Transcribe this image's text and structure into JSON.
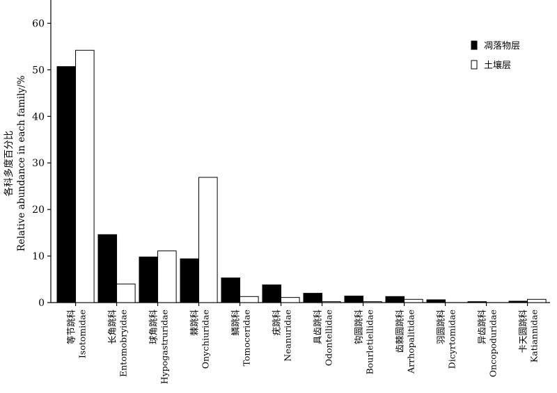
{
  "chart_data": {
    "type": "bar",
    "ylabel_zh": "各科多度百分比",
    "ylabel_en": "Relative abundance in each family/%",
    "ylim": [
      0,
      65
    ],
    "yticks": [
      0,
      10,
      20,
      30,
      40,
      50,
      60
    ],
    "legend_position": "top-right",
    "categories": [
      {
        "zh": "等节跳科",
        "en": "Isotomidae"
      },
      {
        "zh": "长角跳科",
        "en": "Entomobryidae"
      },
      {
        "zh": "球角跳科",
        "en": "Hypogastruridae"
      },
      {
        "zh": "棘跳科",
        "en": "Onychiuridae"
      },
      {
        "zh": "鳞跳科",
        "en": "Tomoceridae"
      },
      {
        "zh": "疣跳科",
        "en": "Neanuridae"
      },
      {
        "zh": "具齿跳科",
        "en": "Odontellidae"
      },
      {
        "zh": "钩圆跳科",
        "en": "Bourletiellidae"
      },
      {
        "zh": "齿棘圆跳科",
        "en": "Arrhopalitidae"
      },
      {
        "zh": "羽圆跳科",
        "en": "Dicyrtomidae"
      },
      {
        "zh": "异齿跳科",
        "en": "Oncopoduridae"
      },
      {
        "zh": "卡天圆跳科",
        "en": "Katiannidae"
      }
    ],
    "series": [
      {
        "name": "凋落物层",
        "color": "#000000",
        "values": [
          50.7,
          14.6,
          9.8,
          9.4,
          5.3,
          3.8,
          2.0,
          1.4,
          1.3,
          0.6,
          0.2,
          0.3
        ]
      },
      {
        "name": "土壤层",
        "color": "#ffffff",
        "values": [
          54.2,
          4.0,
          11.1,
          26.9,
          1.3,
          1.1,
          0.2,
          0.2,
          0.7,
          0.0,
          0.0,
          0.7
        ]
      }
    ]
  }
}
